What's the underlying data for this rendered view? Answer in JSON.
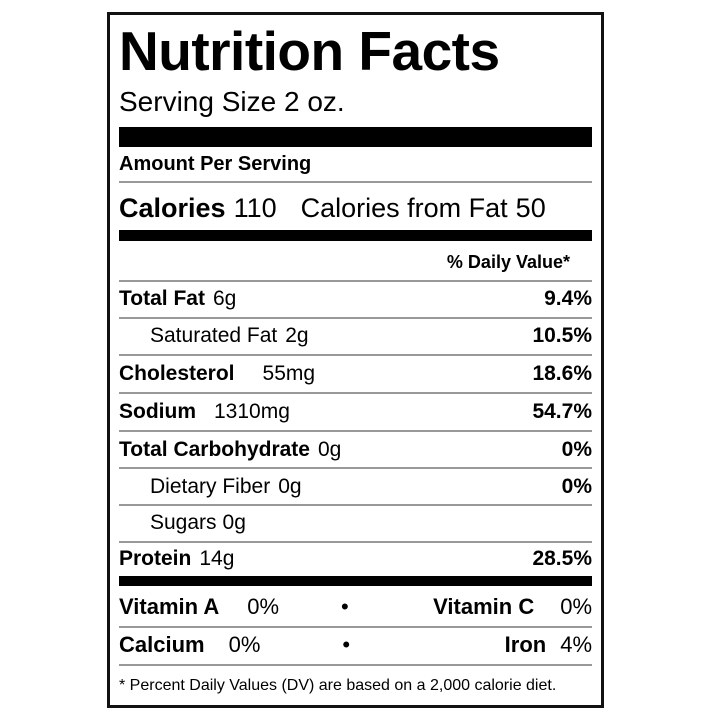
{
  "title": "Nutrition Facts",
  "serving_size": "Serving Size 2 oz.",
  "amount_per_serving": "Amount Per Serving",
  "calories": {
    "label": "Calories",
    "value": "110",
    "from_fat_label": "Calories from Fat",
    "from_fat_value": "50"
  },
  "daily_value_header": "% Daily Value*",
  "nutrients": [
    {
      "label": "Total Fat",
      "amount": "6g",
      "dv": "9.4%"
    },
    {
      "label": "Saturated Fat",
      "amount": "2g",
      "dv": "10.5%"
    },
    {
      "label": "Cholesterol",
      "amount": "55mg",
      "dv": "18.6%"
    },
    {
      "label": "Sodium",
      "amount": "1310mg",
      "dv": "54.7%"
    },
    {
      "label": "Total Carbohydrate",
      "amount": "0g",
      "dv": "0%"
    },
    {
      "label": "Dietary Fiber",
      "amount": "0g",
      "dv": "0%"
    },
    {
      "label": "Sugars",
      "amount": "0g"
    },
    {
      "label": "Protein",
      "amount": "14g",
      "dv": "28.5%"
    }
  ],
  "vitamins": [
    {
      "label": "Vitamin A",
      "value": "0%"
    },
    {
      "label": "Vitamin C",
      "value": "0%"
    },
    {
      "label": "Calcium",
      "value": "0%"
    },
    {
      "label": "Iron",
      "value": "4%"
    }
  ],
  "separator": "•",
  "footnote": "* Percent Daily Values (DV) are based on a 2,000 calorie diet."
}
